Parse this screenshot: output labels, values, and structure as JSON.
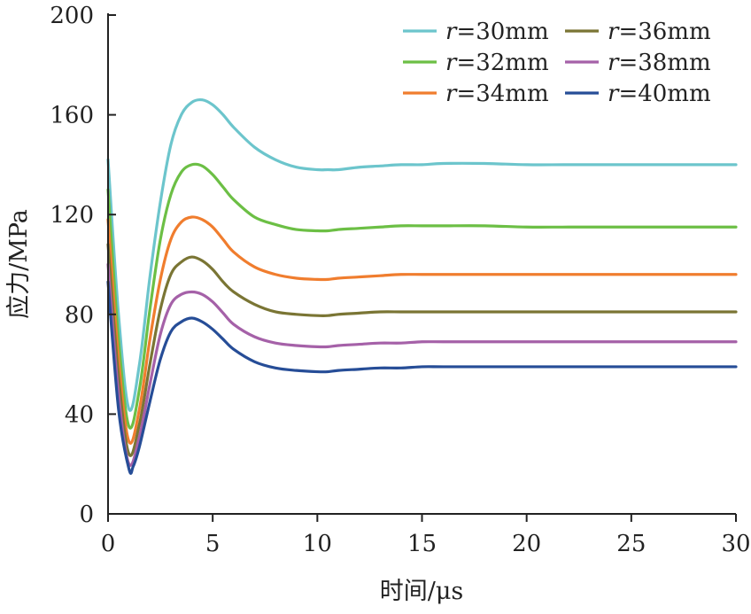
{
  "chart_data": {
    "type": "line",
    "xlabel": "时间/μs",
    "ylabel": "应力/MPa",
    "xlim": [
      0,
      30
    ],
    "ylim": [
      0,
      200
    ],
    "xticks": [
      0,
      5,
      10,
      15,
      20,
      25,
      30
    ],
    "yticks": [
      0,
      40,
      80,
      120,
      160,
      200
    ],
    "grid": false,
    "legend_position": "top-right",
    "legend_prefix": "r",
    "series": [
      {
        "name": "=30mm",
        "color": "#6cc5cc",
        "x": [
          0,
          0.5,
          1.0,
          1.5,
          2,
          2.5,
          3,
          3.5,
          4,
          4.5,
          5,
          5.5,
          6,
          7,
          8,
          9,
          10,
          10.5,
          11,
          12,
          13,
          14,
          15,
          16,
          18,
          20,
          22,
          25,
          28,
          30
        ],
        "y": [
          142,
          80,
          42,
          60,
          95,
          125,
          148,
          160,
          165,
          166,
          164,
          160,
          155,
          147,
          142,
          139,
          138,
          138,
          138,
          139,
          139.5,
          140,
          140,
          140.5,
          140.5,
          140,
          140,
          140,
          140,
          140
        ]
      },
      {
        "name": "=32mm",
        "color": "#6cbf45",
        "x": [
          0,
          0.5,
          1.0,
          1.5,
          2,
          2.5,
          3,
          3.5,
          4,
          4.5,
          5,
          5.5,
          6,
          7,
          8,
          9,
          10,
          10.5,
          11,
          12,
          13,
          14,
          15,
          16,
          18,
          20,
          22,
          25,
          28,
          30
        ],
        "y": [
          130,
          70,
          35,
          50,
          82,
          110,
          128,
          137,
          140,
          139.5,
          136,
          131,
          126,
          119,
          116,
          114,
          113.5,
          113.5,
          114,
          114.5,
          115,
          115.5,
          115.5,
          115.5,
          115.5,
          115,
          115,
          115,
          115,
          115
        ]
      },
      {
        "name": "=34mm",
        "color": "#f07d2e",
        "x": [
          0,
          0.5,
          1.0,
          1.5,
          2,
          2.5,
          3,
          3.5,
          4,
          4.5,
          5,
          5.5,
          6,
          7,
          8,
          9,
          10,
          10.5,
          11,
          12,
          13,
          14,
          15,
          16,
          18,
          20,
          22,
          25,
          28,
          30
        ],
        "y": [
          118,
          62,
          29,
          42,
          70,
          94,
          110,
          117,
          119,
          118,
          115,
          110,
          105,
          99,
          96,
          94.5,
          94,
          94,
          94.5,
          95,
          95.5,
          96,
          96,
          96,
          96,
          96,
          96,
          96,
          96,
          96
        ]
      },
      {
        "name": "=36mm",
        "color": "#7a7534",
        "x": [
          0,
          0.5,
          1.0,
          1.5,
          2,
          2.5,
          3,
          3.5,
          4,
          4.5,
          5,
          5.5,
          6,
          7,
          8,
          9,
          10,
          10.5,
          11,
          12,
          13,
          14,
          15,
          16,
          18,
          20,
          22,
          25,
          28,
          30
        ],
        "y": [
          108,
          55,
          24,
          36,
          60,
          82,
          96,
          101,
          103,
          101.5,
          98,
          93,
          89,
          84,
          81,
          80,
          79.5,
          79.5,
          80,
          80.5,
          81,
          81,
          81,
          81,
          81,
          81,
          81,
          81,
          81,
          81
        ]
      },
      {
        "name": "=38mm",
        "color": "#a561a8",
        "x": [
          0,
          0.5,
          1.0,
          1.5,
          2,
          2.5,
          3,
          3.5,
          4,
          4.5,
          5,
          5.5,
          6,
          7,
          8,
          9,
          10,
          10.5,
          11,
          12,
          13,
          14,
          15,
          16,
          18,
          20,
          22,
          25,
          28,
          30
        ],
        "y": [
          100,
          48,
          20,
          31,
          52,
          72,
          84,
          88,
          89,
          88,
          85,
          80.5,
          76,
          71,
          68.5,
          67.5,
          67,
          67,
          67.5,
          68,
          68.5,
          68.5,
          69,
          69,
          69,
          69,
          69,
          69,
          69,
          69
        ]
      },
      {
        "name": "=40mm",
        "color": "#264d97",
        "x": [
          0,
          0.5,
          1.0,
          1.2,
          1.5,
          2,
          2.5,
          3,
          3.5,
          4,
          4.5,
          5,
          5.5,
          6,
          7,
          8,
          9,
          10,
          10.5,
          11,
          12,
          13,
          14,
          15,
          16,
          18,
          20,
          22,
          25,
          28,
          30
        ],
        "y": [
          93,
          42,
          18,
          19,
          27,
          45,
          62,
          73,
          77,
          78.5,
          77,
          74,
          70,
          66,
          61,
          58.5,
          57.5,
          57,
          57,
          57.5,
          58,
          58.5,
          58.5,
          59,
          59,
          59,
          59,
          59,
          59,
          59,
          59
        ]
      }
    ]
  }
}
